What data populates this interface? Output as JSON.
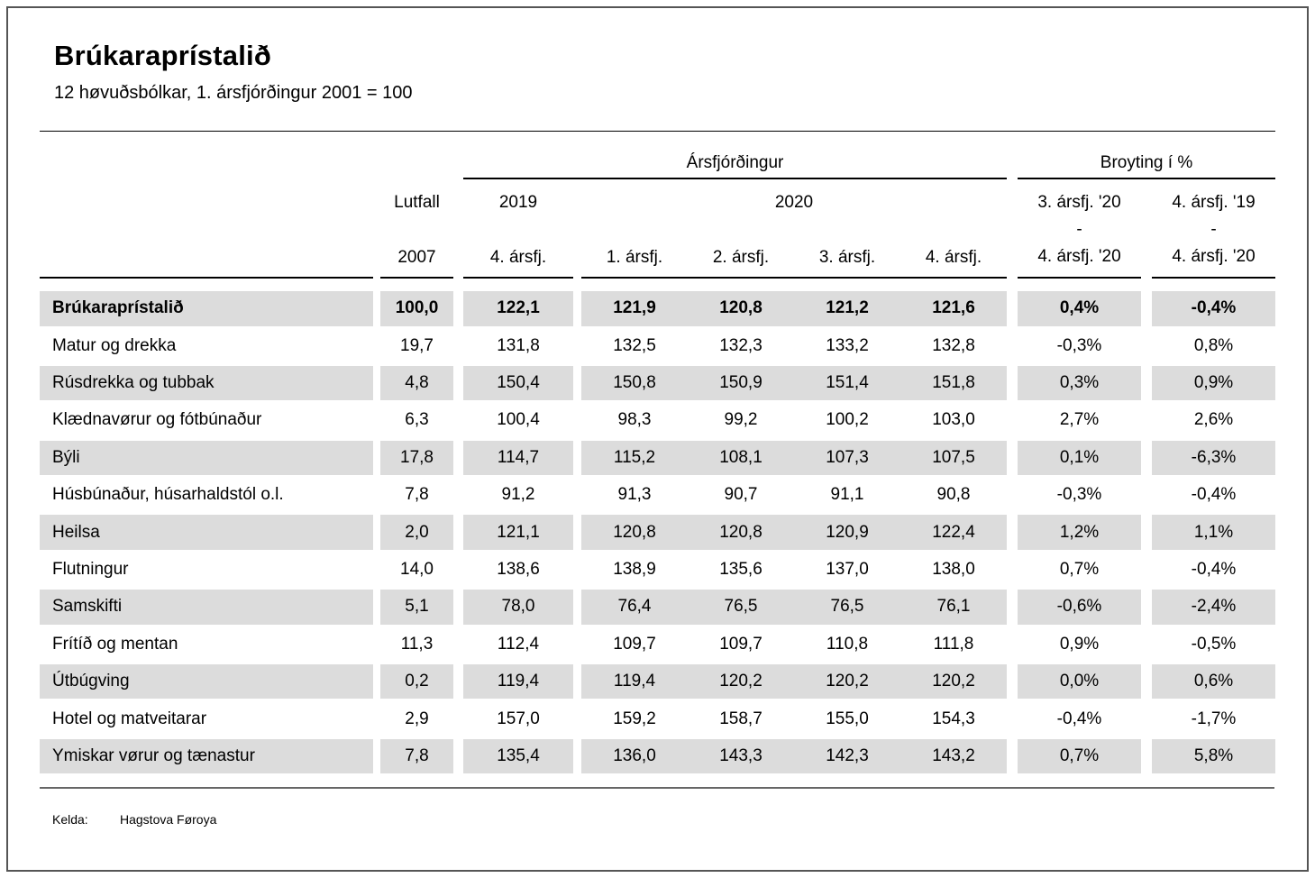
{
  "page": {
    "title": "Brúkaraprístalið",
    "subtitle": "12 høvuðsbólkar, 1. ársfjórðingur 2001 = 100"
  },
  "colors": {
    "row_shade": "#dcdcdc",
    "header_rule": "#000000",
    "bottom_rule": "#666666"
  },
  "table": {
    "group_quarters": "Ársfjórðingur",
    "group_change": "Broyting í %",
    "h_lutfall": "Lutfall",
    "h_2007": "2007",
    "h_2019": "2019",
    "h_2020": "2020",
    "h_q_2019": "4. ársfj.",
    "h_q1": "1. ársfj.",
    "h_q2": "2. ársfj.",
    "h_q3": "3. ársfj.",
    "h_q4": "4. ársfj.",
    "h_chg1": [
      "3. ársfj. '20",
      "-",
      "4. ársfj. '20"
    ],
    "h_chg2": [
      "4. ársfj. '19",
      "-",
      "4. ársfj. '20"
    ],
    "rows": [
      {
        "label": "Brúkaraprístalið",
        "lutfall": "100,0",
        "quarters": [
          "122,1",
          "121,9",
          "120,8",
          "121,2",
          "121,6"
        ],
        "changes": [
          "0,4%",
          "-0,4%"
        ]
      },
      {
        "label": "Matur og drekka",
        "lutfall": "19,7",
        "quarters": [
          "131,8",
          "132,5",
          "132,3",
          "133,2",
          "132,8"
        ],
        "changes": [
          "-0,3%",
          "0,8%"
        ]
      },
      {
        "label": "Rúsdrekka og tubbak",
        "lutfall": "4,8",
        "quarters": [
          "150,4",
          "150,8",
          "150,9",
          "151,4",
          "151,8"
        ],
        "changes": [
          "0,3%",
          "0,9%"
        ]
      },
      {
        "label": "Klædnavørur og fótbúnaður",
        "lutfall": "6,3",
        "quarters": [
          "100,4",
          "98,3",
          "99,2",
          "100,2",
          "103,0"
        ],
        "changes": [
          "2,7%",
          "2,6%"
        ]
      },
      {
        "label": "Býli",
        "lutfall": "17,8",
        "quarters": [
          "114,7",
          "115,2",
          "108,1",
          "107,3",
          "107,5"
        ],
        "changes": [
          "0,1%",
          "-6,3%"
        ]
      },
      {
        "label": "Húsbúnaður, húsarhaldstól o.l.",
        "lutfall": "7,8",
        "quarters": [
          "91,2",
          "91,3",
          "90,7",
          "91,1",
          "90,8"
        ],
        "changes": [
          "-0,3%",
          "-0,4%"
        ]
      },
      {
        "label": "Heilsa",
        "lutfall": "2,0",
        "quarters": [
          "121,1",
          "120,8",
          "120,8",
          "120,9",
          "122,4"
        ],
        "changes": [
          "1,2%",
          "1,1%"
        ]
      },
      {
        "label": "Flutningur",
        "lutfall": "14,0",
        "quarters": [
          "138,6",
          "138,9",
          "135,6",
          "137,0",
          "138,0"
        ],
        "changes": [
          "0,7%",
          "-0,4%"
        ]
      },
      {
        "label": "Samskifti",
        "lutfall": "5,1",
        "quarters": [
          "78,0",
          "76,4",
          "76,5",
          "76,5",
          "76,1"
        ],
        "changes": [
          "-0,6%",
          "-2,4%"
        ]
      },
      {
        "label": "Frítíð og mentan",
        "lutfall": "11,3",
        "quarters": [
          "112,4",
          "109,7",
          "109,7",
          "110,8",
          "111,8"
        ],
        "changes": [
          "0,9%",
          "-0,5%"
        ]
      },
      {
        "label": "Útbúgving",
        "lutfall": "0,2",
        "quarters": [
          "119,4",
          "119,4",
          "120,2",
          "120,2",
          "120,2"
        ],
        "changes": [
          "0,0%",
          "0,6%"
        ]
      },
      {
        "label": "Hotel og matveitarar",
        "lutfall": "2,9",
        "quarters": [
          "157,0",
          "159,2",
          "158,7",
          "155,0",
          "154,3"
        ],
        "changes": [
          "-0,4%",
          "-1,7%"
        ]
      },
      {
        "label": "Ymiskar vørur og tænastur",
        "lutfall": "7,8",
        "quarters": [
          "135,4",
          "136,0",
          "143,3",
          "142,3",
          "143,2"
        ],
        "changes": [
          "0,7%",
          "5,8%"
        ]
      }
    ]
  },
  "footer": {
    "source_label": "Kelda:",
    "source_name": "Hagstova Føroya"
  }
}
